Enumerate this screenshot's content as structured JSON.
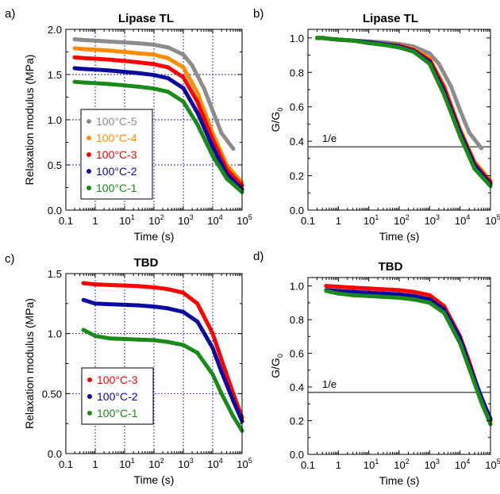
{
  "x_ticks": [
    {
      "base": "0.1",
      "exp": ""
    },
    {
      "base": "1",
      "exp": ""
    },
    {
      "base": "10",
      "exp": "1"
    },
    {
      "base": "10",
      "exp": "2"
    },
    {
      "base": "10",
      "exp": "3"
    },
    {
      "base": "10",
      "exp": "4"
    },
    {
      "base": "10",
      "exp": "5"
    }
  ],
  "chart_data": [
    {
      "type": "scatter",
      "panel_label": "a)",
      "title": "Lipase TL",
      "xlabel": "Time (s)",
      "ylabel": "Relaxation modulus (MPa)",
      "xscale": "log",
      "xlim": [
        0.1,
        100000
      ],
      "ylim": [
        0,
        2.0
      ],
      "yticks": [
        "0.0",
        "0.5",
        "1.0",
        "1.5",
        "2.0"
      ],
      "grid": true,
      "legend_position": "center-left",
      "series": [
        {
          "name": "100°C-5",
          "color": "#8c8c8c",
          "x": [
            0.2,
            0.3,
            0.5,
            1,
            3,
            10,
            30,
            100,
            300,
            1000,
            2000,
            5000,
            10000,
            20000,
            50000
          ],
          "y": [
            1.89,
            1.885,
            1.88,
            1.875,
            1.865,
            1.855,
            1.845,
            1.83,
            1.8,
            1.72,
            1.6,
            1.35,
            1.1,
            0.85,
            0.68
          ]
        },
        {
          "name": "100°C-4",
          "color": "#ff8c00",
          "x": [
            0.2,
            0.3,
            0.5,
            1,
            3,
            10,
            30,
            100,
            300,
            1000,
            3000,
            10000,
            30000,
            100000
          ],
          "y": [
            1.79,
            1.785,
            1.78,
            1.775,
            1.765,
            1.75,
            1.735,
            1.72,
            1.68,
            1.58,
            1.3,
            0.85,
            0.5,
            0.3
          ]
        },
        {
          "name": "100°C-3",
          "color": "#ff0000",
          "x": [
            0.2,
            0.3,
            0.5,
            1,
            3,
            10,
            30,
            100,
            300,
            1000,
            3000,
            10000,
            30000,
            100000
          ],
          "y": [
            1.69,
            1.685,
            1.68,
            1.675,
            1.665,
            1.65,
            1.635,
            1.615,
            1.58,
            1.47,
            1.2,
            0.78,
            0.45,
            0.27
          ]
        },
        {
          "name": "100°C-2",
          "color": "#0a0aa0",
          "x": [
            0.2,
            0.3,
            0.5,
            1,
            3,
            10,
            30,
            100,
            300,
            1000,
            3000,
            10000,
            30000,
            100000
          ],
          "y": [
            1.57,
            1.565,
            1.56,
            1.555,
            1.545,
            1.53,
            1.515,
            1.495,
            1.46,
            1.35,
            1.08,
            0.7,
            0.4,
            0.23
          ]
        },
        {
          "name": "100°C-1",
          "color": "#1a8a1a",
          "x": [
            0.2,
            0.3,
            0.5,
            1,
            3,
            10,
            30,
            100,
            300,
            1000,
            3000,
            10000,
            30000,
            100000
          ],
          "y": [
            1.42,
            1.415,
            1.41,
            1.405,
            1.395,
            1.38,
            1.365,
            1.345,
            1.31,
            1.2,
            0.95,
            0.6,
            0.35,
            0.2
          ]
        }
      ]
    },
    {
      "type": "scatter",
      "panel_label": "b)",
      "title": "Lipase TL",
      "xlabel": "Time (s)",
      "ylabel": "G/G",
      "ylabel_subscript": "0",
      "xscale": "log",
      "xlim": [
        0.1,
        100000
      ],
      "ylim": [
        0,
        1.05
      ],
      "yticks": [
        "0.0",
        "0.2",
        "0.4",
        "0.6",
        "0.8",
        "1.0"
      ],
      "grid": false,
      "annotation": {
        "text": "1/e",
        "y": 0.368
      },
      "series": [
        {
          "color": "#8c8c8c",
          "x": [
            0.2,
            0.3,
            0.5,
            1,
            3,
            10,
            30,
            100,
            300,
            1000,
            2000,
            5000,
            10000,
            20000,
            50000
          ],
          "y": [
            1.0,
            1.0,
            0.995,
            0.99,
            0.985,
            0.98,
            0.975,
            0.965,
            0.95,
            0.91,
            0.85,
            0.72,
            0.58,
            0.45,
            0.36
          ]
        },
        {
          "color": "#ff8c00",
          "x": [
            0.2,
            0.3,
            0.5,
            1,
            3,
            10,
            30,
            100,
            300,
            1000,
            3000,
            10000,
            30000,
            100000
          ],
          "y": [
            1.0,
            1.0,
            0.995,
            0.99,
            0.985,
            0.975,
            0.965,
            0.955,
            0.935,
            0.88,
            0.72,
            0.47,
            0.28,
            0.17
          ]
        },
        {
          "color": "#ff0000",
          "x": [
            0.2,
            0.3,
            0.5,
            1,
            3,
            10,
            30,
            100,
            300,
            1000,
            3000,
            10000,
            30000,
            100000
          ],
          "y": [
            1.0,
            1.0,
            0.995,
            0.99,
            0.985,
            0.975,
            0.965,
            0.955,
            0.93,
            0.87,
            0.71,
            0.46,
            0.27,
            0.16
          ]
        },
        {
          "color": "#0a0aa0",
          "x": [
            0.2,
            0.3,
            0.5,
            1,
            3,
            10,
            30,
            100,
            300,
            1000,
            3000,
            10000,
            30000,
            100000
          ],
          "y": [
            1.0,
            1.0,
            0.995,
            0.99,
            0.985,
            0.975,
            0.965,
            0.95,
            0.925,
            0.86,
            0.69,
            0.45,
            0.26,
            0.15
          ]
        },
        {
          "color": "#1a8a1a",
          "x": [
            0.2,
            0.3,
            0.5,
            1,
            3,
            10,
            30,
            100,
            300,
            1000,
            3000,
            10000,
            30000,
            100000
          ],
          "y": [
            1.0,
            1.0,
            0.995,
            0.99,
            0.985,
            0.97,
            0.96,
            0.945,
            0.92,
            0.85,
            0.67,
            0.43,
            0.24,
            0.14
          ]
        }
      ]
    },
    {
      "type": "scatter",
      "panel_label": "c)",
      "title": "TBD",
      "xlabel": "Time (s)",
      "ylabel": "Relaxation modulus (MPa)",
      "xscale": "log",
      "xlim": [
        0.1,
        100000
      ],
      "ylim": [
        0,
        1.5
      ],
      "yticks": [
        "0.0",
        "0.50",
        "1.0",
        "1.5"
      ],
      "grid": true,
      "legend_position": "center-left",
      "series": [
        {
          "name": "100°C-3",
          "color": "#ff0000",
          "x": [
            0.4,
            1,
            3,
            10,
            30,
            100,
            300,
            1000,
            3000,
            10000,
            20000,
            50000,
            100000
          ],
          "y": [
            1.42,
            1.41,
            1.405,
            1.4,
            1.395,
            1.385,
            1.37,
            1.34,
            1.25,
            1.0,
            0.78,
            0.5,
            0.3
          ]
        },
        {
          "name": "100°C-2",
          "color": "#0a0aa0",
          "x": [
            0.4,
            1,
            3,
            10,
            30,
            100,
            300,
            1000,
            3000,
            10000,
            20000,
            50000,
            100000
          ],
          "y": [
            1.28,
            1.25,
            1.245,
            1.24,
            1.235,
            1.225,
            1.21,
            1.18,
            1.1,
            0.88,
            0.68,
            0.44,
            0.27
          ]
        },
        {
          "name": "100°C-1",
          "color": "#1a8a1a",
          "x": [
            0.4,
            1,
            3,
            10,
            30,
            100,
            300,
            1000,
            3000,
            10000,
            20000,
            50000,
            100000
          ],
          "y": [
            1.03,
            0.98,
            0.96,
            0.955,
            0.95,
            0.945,
            0.93,
            0.905,
            0.84,
            0.66,
            0.5,
            0.31,
            0.19
          ]
        }
      ]
    },
    {
      "type": "scatter",
      "panel_label": "d)",
      "title": "TBD",
      "xlabel": "Time (s)",
      "ylabel": "G/G",
      "ylabel_subscript": "0",
      "xscale": "log",
      "xlim": [
        0.1,
        100000
      ],
      "ylim": [
        0,
        1.05
      ],
      "yticks": [
        "0.0",
        "0.2",
        "0.4",
        "0.6",
        "0.8",
        "1.0"
      ],
      "grid": false,
      "annotation": {
        "text": "1/e",
        "y": 0.368
      },
      "series": [
        {
          "color": "#ff0000",
          "x": [
            0.4,
            1,
            3,
            10,
            30,
            100,
            300,
            1000,
            3000,
            10000,
            20000,
            50000,
            100000
          ],
          "y": [
            1.0,
            0.995,
            0.99,
            0.985,
            0.98,
            0.975,
            0.965,
            0.945,
            0.88,
            0.7,
            0.55,
            0.33,
            0.2
          ]
        },
        {
          "color": "#0a0aa0",
          "x": [
            0.4,
            1,
            3,
            10,
            30,
            100,
            300,
            1000,
            3000,
            10000,
            20000,
            50000,
            100000
          ],
          "y": [
            0.975,
            0.97,
            0.965,
            0.96,
            0.955,
            0.95,
            0.94,
            0.92,
            0.86,
            0.69,
            0.53,
            0.34,
            0.21
          ]
        },
        {
          "color": "#1a8a1a",
          "x": [
            0.4,
            1,
            3,
            10,
            30,
            100,
            300,
            1000,
            3000,
            10000,
            20000,
            50000,
            100000
          ],
          "y": [
            0.97,
            0.955,
            0.945,
            0.94,
            0.935,
            0.93,
            0.92,
            0.9,
            0.84,
            0.66,
            0.51,
            0.31,
            0.18
          ]
        }
      ]
    }
  ]
}
